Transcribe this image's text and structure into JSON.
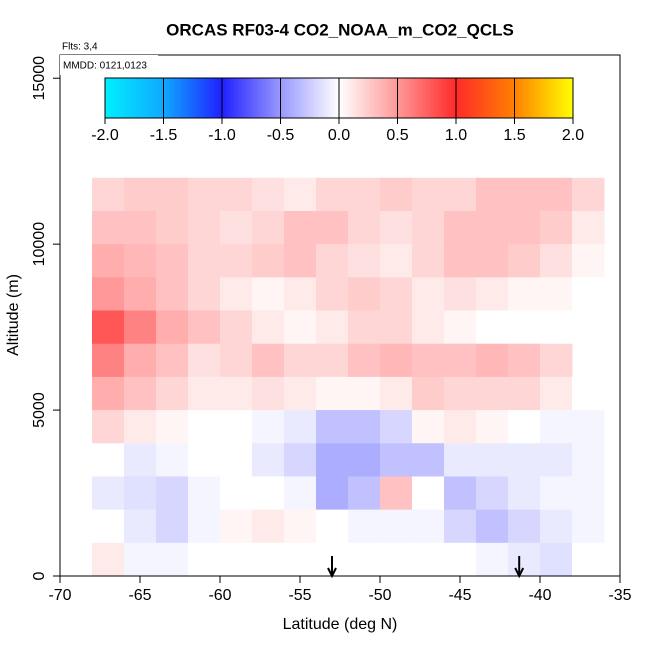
{
  "chart_data": {
    "type": "heatmap",
    "title": "ORCAS RF03-4 CO2_NOAA_m_CO2_QCLS",
    "flights_label": "Flts: 3,4",
    "dates_label": "MMDD: 0121,0123",
    "x_label": "Latitude (deg N)",
    "y_label": "Altitude (m)",
    "xlim": [
      -70,
      -35
    ],
    "ylim": [
      0,
      15700
    ],
    "xticks": [
      -70,
      -65,
      -60,
      -55,
      -50,
      -45,
      -40,
      -35
    ],
    "yticks": [
      0,
      5000,
      10000,
      15000
    ],
    "x": [
      -67,
      -65,
      -63,
      -61,
      -59,
      -57,
      -55,
      -53,
      -51,
      -49,
      -47,
      -45,
      -43,
      -41,
      -39,
      -37
    ],
    "x_cell_width": 2,
    "y": [
      11500,
      10500,
      9500,
      8500,
      7500,
      6500,
      5500,
      4500,
      3500,
      2500,
      1500,
      500
    ],
    "y_cell_height": 1000,
    "values": [
      [
        0.2,
        0.25,
        0.25,
        0.2,
        0.2,
        0.15,
        0.1,
        0.2,
        0.2,
        0.25,
        0.2,
        0.2,
        0.3,
        0.3,
        0.3,
        0.2
      ],
      [
        0.3,
        0.3,
        0.25,
        0.2,
        0.15,
        0.2,
        0.3,
        0.3,
        0.2,
        0.15,
        0.2,
        0.3,
        0.3,
        0.3,
        0.25,
        0.1
      ],
      [
        0.4,
        0.35,
        0.3,
        0.2,
        0.2,
        0.25,
        0.3,
        0.2,
        0.15,
        0.1,
        0.2,
        0.3,
        0.3,
        0.25,
        0.15,
        0.05
      ],
      [
        0.5,
        0.4,
        0.3,
        0.2,
        0.1,
        0.05,
        0.1,
        0.2,
        0.25,
        0.2,
        0.1,
        0.15,
        0.1,
        0.05,
        0.05,
        0
      ],
      [
        0.8,
        0.6,
        0.4,
        0.3,
        0.2,
        0.1,
        0.05,
        0.1,
        0.2,
        0.2,
        0.1,
        0.05,
        0,
        0,
        0,
        0
      ],
      [
        0.6,
        0.4,
        0.3,
        0.15,
        0.2,
        0.3,
        0.2,
        0.2,
        0.3,
        0.35,
        0.3,
        0.3,
        0.35,
        0.3,
        0.2,
        null
      ],
      [
        0.4,
        0.3,
        0.2,
        0.1,
        0.1,
        0.15,
        0.1,
        0.05,
        0.05,
        0.1,
        0.25,
        0.2,
        0.2,
        0.2,
        0.1,
        0
      ],
      [
        0.2,
        0.1,
        0.05,
        0,
        0,
        -0.05,
        -0.1,
        -0.3,
        -0.3,
        -0.2,
        0.05,
        0.1,
        0.05,
        0,
        -0.05,
        -0.05
      ],
      [
        0,
        -0.1,
        -0.05,
        0,
        0,
        -0.1,
        -0.2,
        -0.4,
        -0.4,
        -0.3,
        -0.3,
        -0.1,
        -0.1,
        -0.1,
        -0.1,
        -0.05
      ],
      [
        -0.1,
        -0.15,
        -0.2,
        -0.05,
        0,
        0,
        -0.05,
        -0.4,
        -0.3,
        0.3,
        0,
        -0.3,
        -0.2,
        -0.1,
        -0.05,
        -0.05
      ],
      [
        0,
        -0.1,
        -0.2,
        -0.05,
        0.05,
        0.1,
        0.05,
        0,
        -0.05,
        -0.05,
        -0.05,
        -0.2,
        -0.3,
        -0.2,
        -0.1,
        -0.05
      ],
      [
        0.1,
        -0.05,
        -0.05,
        0,
        0,
        0,
        0,
        0,
        0,
        0,
        0,
        0,
        -0.05,
        -0.1,
        -0.15,
        0
      ]
    ],
    "arrows": [
      -53,
      -41.3
    ],
    "colorbar": {
      "lim": [
        -2,
        2
      ],
      "ticks": [
        {
          "value": -2,
          "label": "-2.0"
        },
        {
          "value": -1.5,
          "label": "-1.5"
        },
        {
          "value": -1,
          "label": "-1.0"
        },
        {
          "value": -0.5,
          "label": "-0.5"
        },
        {
          "value": 0,
          "label": "0.0"
        },
        {
          "value": 0.5,
          "label": "0.5"
        },
        {
          "value": 1,
          "label": "1.0"
        },
        {
          "value": 1.5,
          "label": "1.5"
        },
        {
          "value": 2,
          "label": "2.0"
        }
      ],
      "colors": [
        "#00f0ff",
        "#10a8ff",
        "#2020ff",
        "#9898ff",
        "#ffffff",
        "#ff9898",
        "#ff2a2a",
        "#ff8000",
        "#ffff00"
      ]
    }
  }
}
